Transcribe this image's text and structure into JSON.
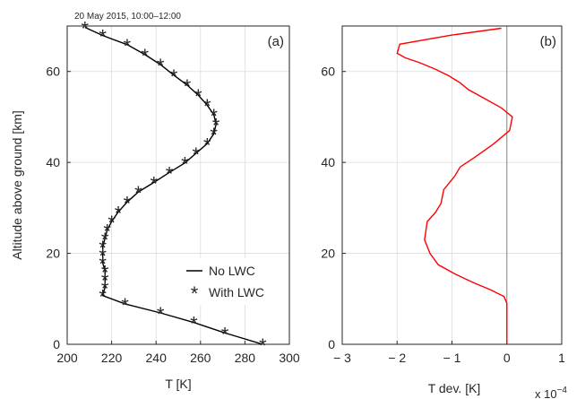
{
  "chart_data": [
    {
      "type": "line",
      "panel_label": "(a)",
      "title": "20 May 2015, 10:00–12:00",
      "xlabel": "T [K]",
      "ylabel": "Altitude above ground [km]",
      "xlim": [
        200,
        300
      ],
      "ylim": [
        0,
        70
      ],
      "xticks": [
        "200",
        "220",
        "240",
        "260",
        "280",
        "300"
      ],
      "yticks": [
        "0",
        "20",
        "40",
        "60"
      ],
      "grid": true,
      "legend_position": "bottom-right",
      "series": [
        {
          "name": "No LWC",
          "style": "line",
          "color": "#000000",
          "x": [
            288,
            271,
            257,
            242,
            226,
            216,
            217,
            217,
            217,
            216,
            216,
            216,
            217,
            218,
            220,
            223,
            227,
            232,
            239,
            246,
            253,
            258,
            263,
            266,
            267,
            266,
            263,
            259,
            254,
            248,
            242,
            235,
            227,
            216,
            208
          ],
          "y": [
            0,
            2.5,
            4.8,
            6.9,
            8.9,
            10.7,
            12.5,
            14.3,
            16.1,
            17.9,
            19.7,
            21.5,
            23.3,
            25.1,
            27.0,
            29.1,
            31.3,
            33.5,
            35.6,
            37.8,
            39.9,
            42.0,
            44.1,
            46.3,
            48.4,
            50.5,
            52.6,
            54.8,
            57.0,
            59.2,
            61.5,
            63.7,
            65.9,
            67.9,
            69.7
          ]
        },
        {
          "name": "With LWC",
          "style": "markers",
          "marker": "*",
          "color": "#1f1fcc",
          "x": [
            288,
            271,
            257,
            242,
            226,
            216,
            217,
            217,
            217,
            216,
            216,
            216,
            217,
            218,
            220,
            223,
            227,
            232,
            239,
            246,
            253,
            258,
            263,
            266,
            267,
            266,
            263,
            259,
            254,
            248,
            242,
            235,
            227,
            216,
            208
          ],
          "y": [
            0,
            2.5,
            4.8,
            6.9,
            8.9,
            10.7,
            12.5,
            14.3,
            16.1,
            17.9,
            19.7,
            21.5,
            23.3,
            25.1,
            27.0,
            29.1,
            31.3,
            33.5,
            35.6,
            37.8,
            39.9,
            42.0,
            44.1,
            46.3,
            48.4,
            50.5,
            52.6,
            54.8,
            57.0,
            59.2,
            61.5,
            63.7,
            65.9,
            67.9,
            69.7
          ]
        }
      ]
    },
    {
      "type": "line",
      "panel_label": "(b)",
      "xlabel": "T dev. [K]",
      "x_exponent_prefix": "x 10",
      "x_exponent": "−4",
      "xlim": [
        -3,
        1
      ],
      "ylim": [
        0,
        70
      ],
      "xticks": [
        "− 3",
        "− 2",
        "− 1",
        "0",
        "1"
      ],
      "yticks": [
        "0",
        "20",
        "40",
        "60"
      ],
      "grid": true,
      "reference_line_x": 0,
      "series": [
        {
          "color": "#ff0000",
          "x": [
            0,
            0,
            0,
            0,
            -0.05,
            -0.3,
            -0.6,
            -0.95,
            -1.25,
            -1.4,
            -1.5,
            -1.45,
            -1.3,
            -1.2,
            -1.15,
            -0.95,
            -0.85,
            -0.6,
            -0.25,
            0.05,
            0.1,
            -0.1,
            -0.4,
            -0.7,
            -0.85,
            -1.05,
            -1.3,
            -1.6,
            -1.85,
            -2.0,
            -1.95,
            -1.0,
            -0.1
          ],
          "y": [
            0,
            3,
            6,
            9,
            10.5,
            12,
            13.5,
            15.5,
            17.5,
            20,
            23,
            27,
            29,
            31,
            34,
            37,
            39,
            41,
            44,
            47,
            50,
            52,
            54,
            56,
            57.5,
            59,
            60.5,
            62,
            63,
            64,
            66,
            68,
            69.5
          ]
        }
      ]
    }
  ]
}
